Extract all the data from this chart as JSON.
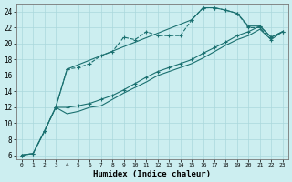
{
  "xlabel": "Humidex (Indice chaleur)",
  "xlim_min": -0.5,
  "xlim_max": 23.5,
  "ylim_min": 5.5,
  "ylim_max": 25.0,
  "xticks": [
    0,
    1,
    2,
    3,
    4,
    5,
    6,
    7,
    8,
    9,
    10,
    11,
    12,
    13,
    14,
    15,
    16,
    17,
    18,
    19,
    20,
    21,
    22,
    23
  ],
  "yticks": [
    6,
    8,
    10,
    12,
    14,
    16,
    18,
    20,
    22,
    24
  ],
  "bg_color": "#cceef0",
  "grid_color": "#aad8dc",
  "line_color": "#1a7070",
  "series": [
    {
      "x": [
        0,
        1,
        2,
        3,
        4,
        5,
        6,
        7,
        8,
        9,
        10,
        11,
        12,
        13,
        14,
        15,
        16,
        17,
        18,
        19,
        20,
        21,
        22
      ],
      "y": [
        6.0,
        6.2,
        9.0,
        12.0,
        16.8,
        17.0,
        17.5,
        18.5,
        19.0,
        20.8,
        20.5,
        21.5,
        21.0,
        21.0,
        21.0,
        23.0,
        24.5,
        24.5,
        24.2,
        23.8,
        22.0,
        22.0,
        20.5
      ],
      "linestyle": "--",
      "marker": "+"
    },
    {
      "x": [
        3,
        4,
        15,
        16,
        17,
        18,
        19,
        20,
        21,
        22,
        23
      ],
      "y": [
        12.0,
        16.8,
        23.0,
        24.5,
        24.5,
        24.2,
        23.8,
        22.2,
        22.2,
        20.8,
        21.5
      ],
      "linestyle": "-",
      "marker": "+"
    },
    {
      "x": [
        0,
        1,
        2,
        3,
        4,
        5,
        6,
        7,
        8,
        9,
        10,
        11,
        12,
        13,
        14,
        15,
        16,
        17,
        18,
        19,
        20,
        21,
        22,
        23
      ],
      "y": [
        6.0,
        6.2,
        9.0,
        12.0,
        12.0,
        12.2,
        12.5,
        13.0,
        13.5,
        14.2,
        15.0,
        15.8,
        16.5,
        17.0,
        17.5,
        18.0,
        18.8,
        19.5,
        20.2,
        21.0,
        21.5,
        22.2,
        20.8,
        21.5
      ],
      "linestyle": "-",
      "marker": "+"
    },
    {
      "x": [
        0,
        1,
        2,
        3,
        4,
        5,
        6,
        7,
        8,
        9,
        10,
        11,
        12,
        13,
        14,
        15,
        16,
        17,
        18,
        19,
        20,
        21,
        22,
        23
      ],
      "y": [
        6.0,
        6.2,
        9.0,
        12.0,
        11.2,
        11.5,
        12.0,
        12.2,
        13.0,
        13.8,
        14.5,
        15.2,
        16.0,
        16.5,
        17.0,
        17.5,
        18.2,
        19.0,
        19.8,
        20.5,
        21.0,
        21.8,
        20.5,
        21.5
      ],
      "linestyle": "-",
      "marker": null
    }
  ]
}
